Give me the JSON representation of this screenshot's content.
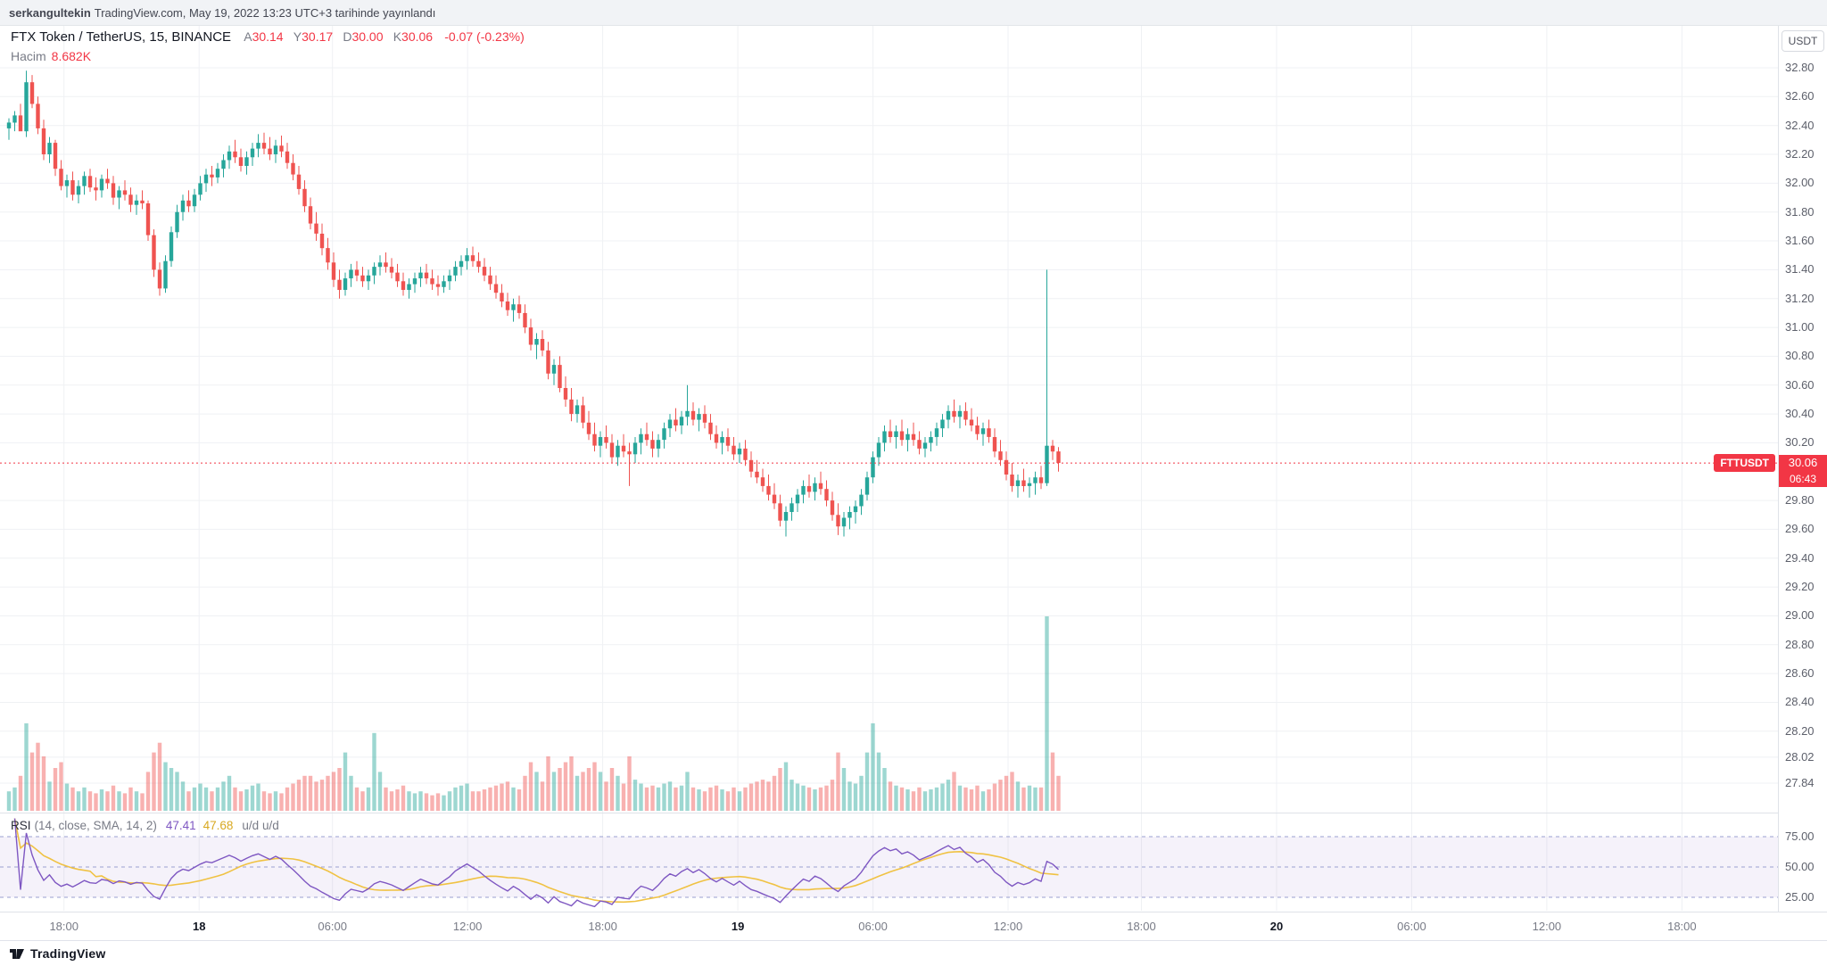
{
  "attribution": {
    "username": "serkangultekin",
    "text": "TradingView.com, May 19, 2022 13:23 UTC+3 tarihinde yayınlandı"
  },
  "header": {
    "symbol_title": "FTX Token / TetherUS, 15, BINANCE",
    "o_label": "A",
    "o": "30.14",
    "h_label": "Y",
    "h": "30.17",
    "l_label": "D",
    "l": "30.00",
    "c_label": "K",
    "c": "30.06",
    "change": "-0.07 (-0.23%)",
    "volume_label": "Hacim",
    "volume_value": "8.682K"
  },
  "rsi_legend": {
    "name": "RSI",
    "params": "(14, close, SMA, 14, 2)",
    "value": "47.41",
    "ma_value": "47.68",
    "suffix": "u/d  u/d"
  },
  "price_axis": {
    "currency_button": "USDT",
    "ticks": [
      "32.80",
      "32.60",
      "32.40",
      "32.20",
      "32.00",
      "31.80",
      "31.60",
      "31.40",
      "31.20",
      "31.00",
      "30.80",
      "30.60",
      "30.40",
      "30.20",
      "29.80",
      "29.60",
      "29.40",
      "29.20",
      "29.00",
      "28.80",
      "28.60",
      "28.40",
      "28.20",
      "28.02",
      "27.84"
    ],
    "rsi_ticks": [
      "75.00",
      "50.00",
      "25.00"
    ],
    "last": {
      "symbol": "FTTUSDT",
      "price": "30.06",
      "countdown": "06:43"
    }
  },
  "footer": {
    "brand": "TradingView"
  },
  "colors": {
    "up": "#26a69a",
    "down": "#ef5350",
    "accent_red": "#f23645",
    "grid": "#eff1f4",
    "separator": "#dfe2e8",
    "rsi_line": "#7e57c2",
    "rsi_ma_line": "#f0c243",
    "rsi_band_fill": "rgba(126,87,194,0.08)",
    "rsi_level_line": "#9aa0d0"
  },
  "chart_data": {
    "type": "candlestick",
    "symbol": "FTTUSDT",
    "exchange": "BINANCE",
    "interval": "15",
    "unit": "USDT",
    "visible_price_range": [
      27.84,
      32.8
    ],
    "current": {
      "open": 30.14,
      "high": 30.17,
      "low": 30.0,
      "close": 30.06,
      "change": -0.07,
      "change_pct": -0.23,
      "volume": "8.682K",
      "countdown": "06:43"
    },
    "current_price": 30.06,
    "candle_format": [
      "open",
      "high",
      "low",
      "close",
      "volume_rel"
    ],
    "candles": [
      [
        32.38,
        32.45,
        32.3,
        32.42,
        0.1
      ],
      [
        32.42,
        32.5,
        32.36,
        32.47,
        0.12
      ],
      [
        32.47,
        32.55,
        32.4,
        32.36,
        0.18
      ],
      [
        32.36,
        32.78,
        32.32,
        32.7,
        0.45
      ],
      [
        32.7,
        32.75,
        32.52,
        32.55,
        0.3
      ],
      [
        32.55,
        32.6,
        32.34,
        32.38,
        0.35
      ],
      [
        32.38,
        32.44,
        32.16,
        32.2,
        0.28
      ],
      [
        32.2,
        32.32,
        32.14,
        32.28,
        0.15
      ],
      [
        32.28,
        32.3,
        32.05,
        32.1,
        0.22
      ],
      [
        32.1,
        32.16,
        31.95,
        31.98,
        0.25
      ],
      [
        31.98,
        32.06,
        31.9,
        32.02,
        0.14
      ],
      [
        32.02,
        32.08,
        31.88,
        31.92,
        0.12
      ],
      [
        31.92,
        32.02,
        31.86,
        31.98,
        0.1
      ],
      [
        31.98,
        32.08,
        31.92,
        32.05,
        0.12
      ],
      [
        32.05,
        32.1,
        31.94,
        31.97,
        0.1
      ],
      [
        31.97,
        32.04,
        31.88,
        31.95,
        0.09
      ],
      [
        31.95,
        32.06,
        31.9,
        32.03,
        0.11
      ],
      [
        32.03,
        32.1,
        31.96,
        32.0,
        0.1
      ],
      [
        32.0,
        32.05,
        31.85,
        31.9,
        0.13
      ],
      [
        31.9,
        31.98,
        31.82,
        31.95,
        0.1
      ],
      [
        31.95,
        32.02,
        31.88,
        31.92,
        0.09
      ],
      [
        31.92,
        31.97,
        31.8,
        31.85,
        0.12
      ],
      [
        31.85,
        31.92,
        31.78,
        31.88,
        0.1
      ],
      [
        31.88,
        31.95,
        31.82,
        31.86,
        0.09
      ],
      [
        31.86,
        31.88,
        31.6,
        31.64,
        0.2
      ],
      [
        31.64,
        31.68,
        31.35,
        31.4,
        0.3
      ],
      [
        31.4,
        31.45,
        31.22,
        31.27,
        0.35
      ],
      [
        31.27,
        31.5,
        31.24,
        31.46,
        0.25
      ],
      [
        31.46,
        31.7,
        31.42,
        31.66,
        0.22
      ],
      [
        31.66,
        31.85,
        31.62,
        31.8,
        0.2
      ],
      [
        31.8,
        31.92,
        31.74,
        31.88,
        0.15
      ],
      [
        31.88,
        31.95,
        31.8,
        31.84,
        0.1
      ],
      [
        31.84,
        31.96,
        31.8,
        31.92,
        0.12
      ],
      [
        31.92,
        32.05,
        31.88,
        32.0,
        0.14
      ],
      [
        32.0,
        32.1,
        31.94,
        32.06,
        0.12
      ],
      [
        32.06,
        32.12,
        31.98,
        32.04,
        0.1
      ],
      [
        32.04,
        32.14,
        32.0,
        32.1,
        0.12
      ],
      [
        32.1,
        32.2,
        32.04,
        32.16,
        0.15
      ],
      [
        32.16,
        32.26,
        32.1,
        32.22,
        0.18
      ],
      [
        32.22,
        32.3,
        32.14,
        32.18,
        0.12
      ],
      [
        32.18,
        32.24,
        32.08,
        32.12,
        0.1
      ],
      [
        32.12,
        32.22,
        32.06,
        32.18,
        0.11
      ],
      [
        32.18,
        32.28,
        32.12,
        32.24,
        0.13
      ],
      [
        32.24,
        32.34,
        32.18,
        32.28,
        0.14
      ],
      [
        32.28,
        32.35,
        32.2,
        32.24,
        0.1
      ],
      [
        32.24,
        32.32,
        32.16,
        32.2,
        0.09
      ],
      [
        32.2,
        32.3,
        32.14,
        32.26,
        0.1
      ],
      [
        32.26,
        32.33,
        32.18,
        32.22,
        0.09
      ],
      [
        32.22,
        32.28,
        32.1,
        32.14,
        0.12
      ],
      [
        32.14,
        32.2,
        32.02,
        32.06,
        0.14
      ],
      [
        32.06,
        32.12,
        31.92,
        31.96,
        0.16
      ],
      [
        31.96,
        32.02,
        31.8,
        31.84,
        0.18
      ],
      [
        31.84,
        31.9,
        31.68,
        31.72,
        0.18
      ],
      [
        31.72,
        31.8,
        31.6,
        31.65,
        0.15
      ],
      [
        31.65,
        31.72,
        31.5,
        31.55,
        0.16
      ],
      [
        31.55,
        31.62,
        31.4,
        31.45,
        0.18
      ],
      [
        31.45,
        31.52,
        31.28,
        31.33,
        0.2
      ],
      [
        31.33,
        31.4,
        31.2,
        31.26,
        0.22
      ],
      [
        31.26,
        31.38,
        31.22,
        31.34,
        0.3
      ],
      [
        31.34,
        31.44,
        31.28,
        31.4,
        0.18
      ],
      [
        31.4,
        31.46,
        31.32,
        31.36,
        0.12
      ],
      [
        31.36,
        31.42,
        31.28,
        31.32,
        0.1
      ],
      [
        31.32,
        31.4,
        31.26,
        31.36,
        0.12
      ],
      [
        31.36,
        31.45,
        31.3,
        31.42,
        0.4
      ],
      [
        31.42,
        31.5,
        31.36,
        31.45,
        0.2
      ],
      [
        31.45,
        31.52,
        31.38,
        31.42,
        0.12
      ],
      [
        31.42,
        31.48,
        31.34,
        31.38,
        0.1
      ],
      [
        31.38,
        31.44,
        31.28,
        31.32,
        0.11
      ],
      [
        31.32,
        31.38,
        31.22,
        31.26,
        0.13
      ],
      [
        31.26,
        31.34,
        31.2,
        31.3,
        0.1
      ],
      [
        31.3,
        31.38,
        31.24,
        31.34,
        0.09
      ],
      [
        31.34,
        31.42,
        31.28,
        31.38,
        0.1
      ],
      [
        31.38,
        31.44,
        31.3,
        31.34,
        0.09
      ],
      [
        31.34,
        31.4,
        31.26,
        31.3,
        0.08
      ],
      [
        31.3,
        31.36,
        31.22,
        31.28,
        0.09
      ],
      [
        31.28,
        31.36,
        31.24,
        31.32,
        0.08
      ],
      [
        31.32,
        31.4,
        31.26,
        31.36,
        0.1
      ],
      [
        31.36,
        31.46,
        31.32,
        31.42,
        0.12
      ],
      [
        31.42,
        31.5,
        31.36,
        31.46,
        0.13
      ],
      [
        31.46,
        31.55,
        31.4,
        31.5,
        0.14
      ],
      [
        31.5,
        31.56,
        31.42,
        31.46,
        0.1
      ],
      [
        31.46,
        31.52,
        31.38,
        31.42,
        0.1
      ],
      [
        31.42,
        31.48,
        31.32,
        31.36,
        0.11
      ],
      [
        31.36,
        31.42,
        31.26,
        31.3,
        0.12
      ],
      [
        31.3,
        31.36,
        31.2,
        31.24,
        0.13
      ],
      [
        31.24,
        31.3,
        31.14,
        31.18,
        0.14
      ],
      [
        31.18,
        31.24,
        31.08,
        31.12,
        0.15
      ],
      [
        31.12,
        31.2,
        31.04,
        31.16,
        0.12
      ],
      [
        31.16,
        31.22,
        31.06,
        31.1,
        0.11
      ],
      [
        31.1,
        31.16,
        30.96,
        31.0,
        0.18
      ],
      [
        31.0,
        31.06,
        30.84,
        30.88,
        0.25
      ],
      [
        30.88,
        30.96,
        30.78,
        30.92,
        0.2
      ],
      [
        30.92,
        30.98,
        30.8,
        30.84,
        0.15
      ],
      [
        30.84,
        30.9,
        30.64,
        30.68,
        0.28
      ],
      [
        30.68,
        30.78,
        30.6,
        30.74,
        0.2
      ],
      [
        30.74,
        30.8,
        30.55,
        30.58,
        0.22
      ],
      [
        30.58,
        30.66,
        30.45,
        30.5,
        0.25
      ],
      [
        30.5,
        30.58,
        30.35,
        30.4,
        0.28
      ],
      [
        30.4,
        30.5,
        30.34,
        30.46,
        0.18
      ],
      [
        30.46,
        30.52,
        30.3,
        30.34,
        0.2
      ],
      [
        30.34,
        30.42,
        30.22,
        30.26,
        0.22
      ],
      [
        30.26,
        30.34,
        30.14,
        30.18,
        0.25
      ],
      [
        30.18,
        30.28,
        30.1,
        30.24,
        0.2
      ],
      [
        30.24,
        30.32,
        30.16,
        30.2,
        0.15
      ],
      [
        30.2,
        30.26,
        30.06,
        30.1,
        0.22
      ],
      [
        30.1,
        30.22,
        30.04,
        30.18,
        0.18
      ],
      [
        30.18,
        30.26,
        30.1,
        30.14,
        0.14
      ],
      [
        30.14,
        30.2,
        29.9,
        30.12,
        0.28
      ],
      [
        30.12,
        30.24,
        30.06,
        30.2,
        0.16
      ],
      [
        30.2,
        30.3,
        30.12,
        30.26,
        0.14
      ],
      [
        30.26,
        30.34,
        30.18,
        30.22,
        0.12
      ],
      [
        30.22,
        30.28,
        30.1,
        30.16,
        0.13
      ],
      [
        30.16,
        30.26,
        30.1,
        30.22,
        0.12
      ],
      [
        30.22,
        30.34,
        30.16,
        30.3,
        0.14
      ],
      [
        30.3,
        30.4,
        30.24,
        30.36,
        0.15
      ],
      [
        30.36,
        30.44,
        30.28,
        30.32,
        0.12
      ],
      [
        30.32,
        30.42,
        30.26,
        30.38,
        0.13
      ],
      [
        30.38,
        30.6,
        30.32,
        30.42,
        0.2
      ],
      [
        30.42,
        30.48,
        30.32,
        30.36,
        0.12
      ],
      [
        30.36,
        30.44,
        30.28,
        30.4,
        0.11
      ],
      [
        30.4,
        30.46,
        30.3,
        30.34,
        0.1
      ],
      [
        30.34,
        30.4,
        30.22,
        30.26,
        0.12
      ],
      [
        30.26,
        30.32,
        30.16,
        30.2,
        0.13
      ],
      [
        30.2,
        30.28,
        30.12,
        30.24,
        0.11
      ],
      [
        30.24,
        30.3,
        30.14,
        30.18,
        0.1
      ],
      [
        30.18,
        30.24,
        30.08,
        30.12,
        0.12
      ],
      [
        30.12,
        30.2,
        30.06,
        30.16,
        0.1
      ],
      [
        30.16,
        30.22,
        30.04,
        30.08,
        0.12
      ],
      [
        30.08,
        30.14,
        29.96,
        30.0,
        0.14
      ],
      [
        30.0,
        30.08,
        29.92,
        29.96,
        0.15
      ],
      [
        29.96,
        30.02,
        29.86,
        29.9,
        0.16
      ],
      [
        29.9,
        29.98,
        29.8,
        29.84,
        0.15
      ],
      [
        29.84,
        29.92,
        29.74,
        29.78,
        0.18
      ],
      [
        29.78,
        29.84,
        29.62,
        29.66,
        0.22
      ],
      [
        29.66,
        29.76,
        29.55,
        29.72,
        0.25
      ],
      [
        29.72,
        29.82,
        29.66,
        29.78,
        0.16
      ],
      [
        29.78,
        29.88,
        29.72,
        29.84,
        0.14
      ],
      [
        29.84,
        29.94,
        29.78,
        29.9,
        0.13
      ],
      [
        29.9,
        29.98,
        29.82,
        29.86,
        0.12
      ],
      [
        29.86,
        29.96,
        29.8,
        29.92,
        0.11
      ],
      [
        29.92,
        30.0,
        29.84,
        29.88,
        0.12
      ],
      [
        29.88,
        29.94,
        29.76,
        29.8,
        0.13
      ],
      [
        29.8,
        29.86,
        29.66,
        29.7,
        0.16
      ],
      [
        29.7,
        29.78,
        29.56,
        29.62,
        0.3
      ],
      [
        29.62,
        29.72,
        29.55,
        29.68,
        0.22
      ],
      [
        29.68,
        29.76,
        29.6,
        29.72,
        0.15
      ],
      [
        29.72,
        29.8,
        29.64,
        29.76,
        0.14
      ],
      [
        29.76,
        29.88,
        29.7,
        29.84,
        0.18
      ],
      [
        29.84,
        30.0,
        29.8,
        29.96,
        0.3
      ],
      [
        29.96,
        30.14,
        29.92,
        30.1,
        0.45
      ],
      [
        30.1,
        30.24,
        30.04,
        30.2,
        0.3
      ],
      [
        30.2,
        30.32,
        30.14,
        30.28,
        0.22
      ],
      [
        30.28,
        30.36,
        30.2,
        30.24,
        0.15
      ],
      [
        30.24,
        30.32,
        30.16,
        30.28,
        0.13
      ],
      [
        30.28,
        30.36,
        30.18,
        30.22,
        0.12
      ],
      [
        30.22,
        30.3,
        30.14,
        30.26,
        0.11
      ],
      [
        30.26,
        30.34,
        30.18,
        30.22,
        0.1
      ],
      [
        30.22,
        30.28,
        30.12,
        30.16,
        0.12
      ],
      [
        30.16,
        30.24,
        30.1,
        30.2,
        0.1
      ],
      [
        30.2,
        30.28,
        30.14,
        30.24,
        0.11
      ],
      [
        30.24,
        30.34,
        30.18,
        30.3,
        0.12
      ],
      [
        30.3,
        30.4,
        30.24,
        30.36,
        0.14
      ],
      [
        30.36,
        30.46,
        30.3,
        30.42,
        0.16
      ],
      [
        30.42,
        30.5,
        30.34,
        30.38,
        0.2
      ],
      [
        30.38,
        30.46,
        30.3,
        30.42,
        0.13
      ],
      [
        30.42,
        30.48,
        30.32,
        30.36,
        0.12
      ],
      [
        30.36,
        30.44,
        30.28,
        30.32,
        0.11
      ],
      [
        30.32,
        30.38,
        30.22,
        30.26,
        0.13
      ],
      [
        30.26,
        30.34,
        30.18,
        30.3,
        0.1
      ],
      [
        30.3,
        30.36,
        30.2,
        30.24,
        0.11
      ],
      [
        30.24,
        30.3,
        30.1,
        30.14,
        0.14
      ],
      [
        30.14,
        30.22,
        30.04,
        30.08,
        0.16
      ],
      [
        30.08,
        30.14,
        29.94,
        29.98,
        0.18
      ],
      [
        29.98,
        30.06,
        29.86,
        29.9,
        0.2
      ],
      [
        29.9,
        29.98,
        29.82,
        29.94,
        0.15
      ],
      [
        29.94,
        30.02,
        29.86,
        29.9,
        0.12
      ],
      [
        29.9,
        29.96,
        29.82,
        29.92,
        0.13
      ],
      [
        29.92,
        30.0,
        29.84,
        29.96,
        0.12
      ],
      [
        29.96,
        30.04,
        29.88,
        29.92,
        0.12
      ],
      [
        29.92,
        31.4,
        29.9,
        30.18,
        1.0
      ],
      [
        30.18,
        30.22,
        30.08,
        30.14,
        0.3
      ],
      [
        30.14,
        30.17,
        30.0,
        30.06,
        0.18
      ]
    ],
    "indicators": {
      "volume": {
        "label": "Hacim",
        "last": "8.682K"
      },
      "rsi": {
        "name": "RSI",
        "period": 14,
        "source": "close",
        "smoothing": "SMA",
        "smoothing_period": 14,
        "last": 47.41,
        "ma_last": 47.68,
        "levels": [
          75,
          50,
          25
        ]
      }
    },
    "time_axis_labels": [
      {
        "label": "18:00",
        "x": 0.036
      },
      {
        "label": "18",
        "x": 0.112,
        "day": true
      },
      {
        "label": "06:00",
        "x": 0.187
      },
      {
        "label": "12:00",
        "x": 0.263
      },
      {
        "label": "18:00",
        "x": 0.339
      },
      {
        "label": "19",
        "x": 0.415,
        "day": true
      },
      {
        "label": "06:00",
        "x": 0.491
      },
      {
        "label": "12:00",
        "x": 0.567
      },
      {
        "label": "18:00",
        "x": 0.642
      },
      {
        "label": "20",
        "x": 0.718,
        "day": true
      },
      {
        "label": "06:00",
        "x": 0.794
      },
      {
        "label": "12:00",
        "x": 0.87
      },
      {
        "label": "18:00",
        "x": 0.946
      }
    ]
  }
}
